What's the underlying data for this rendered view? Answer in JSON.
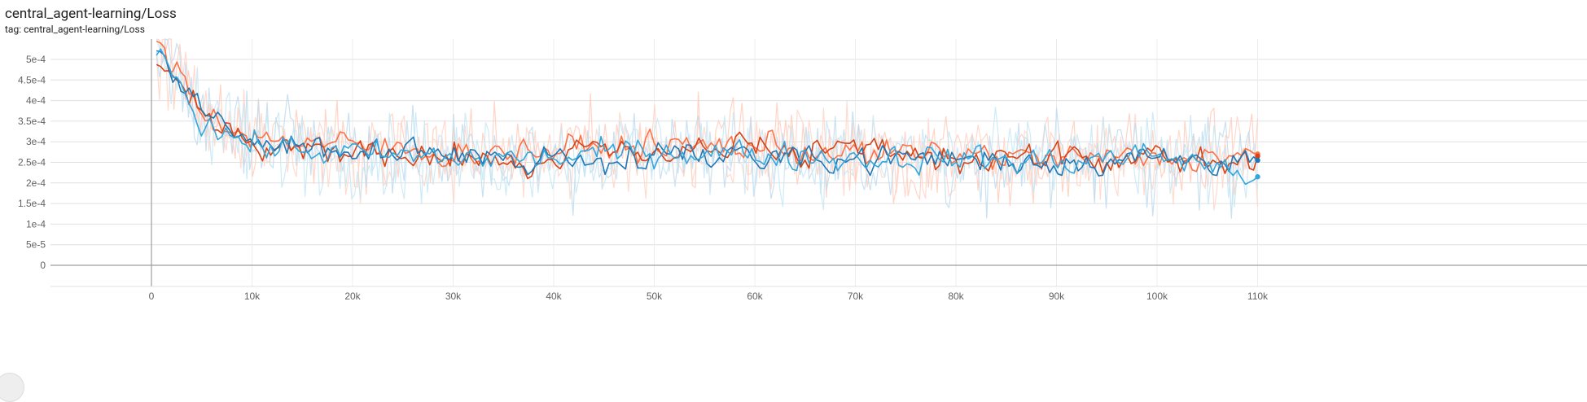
{
  "header": {
    "title": "central_agent-learning/Loss",
    "tag": "tag: central_agent-learning/Loss"
  },
  "chart_data": {
    "type": "line",
    "title": "central_agent-learning/Loss",
    "subtitle": "tag: central_agent-learning/Loss",
    "xlabel": "",
    "ylabel": "",
    "xlim": [
      -10000,
      110500
    ],
    "ylim": [
      -5e-05,
      0.00055
    ],
    "x_ticks": [
      {
        "value": 0,
        "label": "0"
      },
      {
        "value": 10000,
        "label": "10k"
      },
      {
        "value": 20000,
        "label": "20k"
      },
      {
        "value": 30000,
        "label": "30k"
      },
      {
        "value": 40000,
        "label": "40k"
      },
      {
        "value": 50000,
        "label": "50k"
      },
      {
        "value": 60000,
        "label": "60k"
      },
      {
        "value": 70000,
        "label": "70k"
      },
      {
        "value": 80000,
        "label": "80k"
      },
      {
        "value": 90000,
        "label": "90k"
      },
      {
        "value": 100000,
        "label": "100k"
      },
      {
        "value": 110000,
        "label": "110k"
      }
    ],
    "y_ticks": [
      {
        "value": 0,
        "label": "0"
      },
      {
        "value": 5e-05,
        "label": "5e-5"
      },
      {
        "value": 0.0001,
        "label": "1e-4"
      },
      {
        "value": 0.00015,
        "label": "1.5e-4"
      },
      {
        "value": 0.0002,
        "label": "2e-4"
      },
      {
        "value": 0.00025,
        "label": "2.5e-4"
      },
      {
        "value": 0.0003,
        "label": "3e-4"
      },
      {
        "value": 0.00035,
        "label": "3.5e-4"
      },
      {
        "value": 0.0004,
        "label": "4e-4"
      },
      {
        "value": 0.00045,
        "label": "4.5e-4"
      },
      {
        "value": 0.0005,
        "label": "5e-4"
      }
    ],
    "grid": true,
    "smoothed_series_points": 270,
    "series": [
      {
        "color": "#ff7043",
        "raw_color": "#ffccbc",
        "end_value": 0.00027,
        "x": [
          500,
          5000,
          10000,
          20000,
          30000,
          40000,
          50000,
          60000,
          70000,
          80000,
          90000,
          100000,
          110000
        ],
        "y": [
          0.00055,
          0.00038,
          0.00031,
          0.00029,
          0.00027,
          0.00028,
          0.00029,
          0.00029,
          0.00027,
          0.00027,
          0.00026,
          0.00026,
          0.00027
        ]
      },
      {
        "color": "#d84315",
        "raw_color": "#ffd5c8",
        "end_value": 0.000265,
        "x": [
          500,
          5000,
          10000,
          20000,
          30000,
          40000,
          50000,
          60000,
          70000,
          80000,
          90000,
          100000,
          110000
        ],
        "y": [
          0.00052,
          0.00037,
          0.0003,
          0.00027,
          0.00026,
          0.00026,
          0.00028,
          0.00028,
          0.00027,
          0.00026,
          0.00026,
          0.00025,
          0.000265
        ]
      },
      {
        "color": "#1f77b4",
        "raw_color": "#bfdcef",
        "end_value": 0.000255,
        "x": [
          500,
          5000,
          10000,
          20000,
          30000,
          40000,
          50000,
          60000,
          70000,
          80000,
          90000,
          100000,
          110000
        ],
        "y": [
          0.00054,
          0.00036,
          0.0003,
          0.00028,
          0.00026,
          0.00026,
          0.00027,
          0.00027,
          0.00026,
          0.00026,
          0.00025,
          0.00026,
          0.000255
        ]
      },
      {
        "color": "#33a6dc",
        "raw_color": "#c6e7f6",
        "end_value": 0.000215,
        "x": [
          500,
          5000,
          10000,
          20000,
          30000,
          40000,
          50000,
          60000,
          70000,
          80000,
          90000,
          100000,
          110000
        ],
        "y": [
          0.00055,
          0.00035,
          0.00029,
          0.00027,
          0.00026,
          0.00026,
          0.00028,
          0.00027,
          0.00026,
          0.00026,
          0.00025,
          0.00027,
          0.000215
        ]
      }
    ]
  }
}
